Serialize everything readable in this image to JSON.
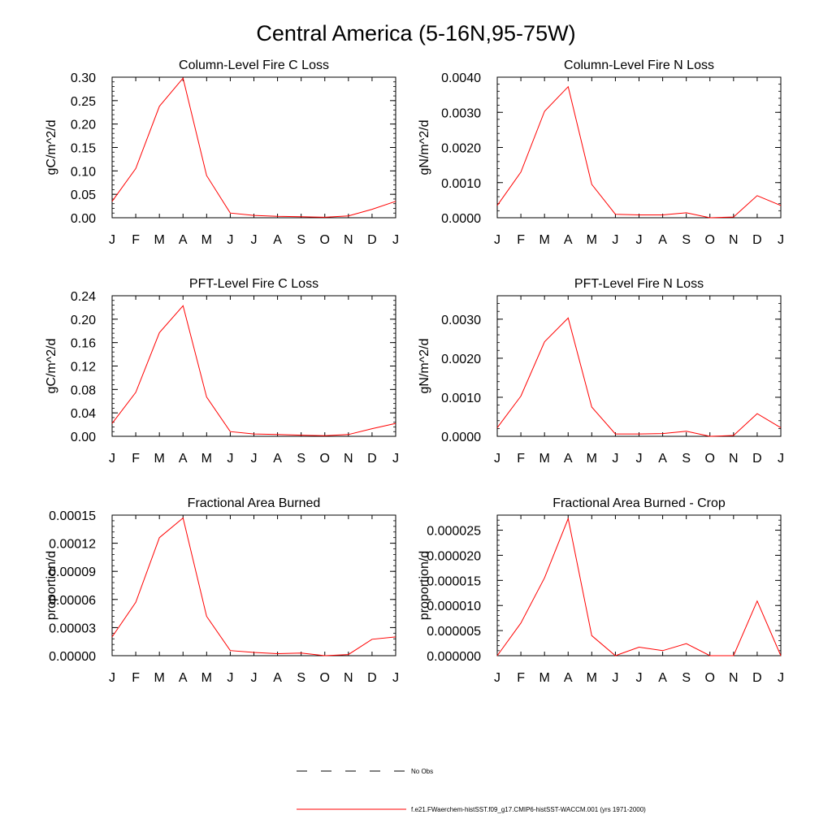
{
  "title": "Central America (5-16N,95-75W)",
  "series_color": "#ff0000",
  "legend": {
    "entries": [
      {
        "label": "No Obs",
        "style": "dashed",
        "color": "#000000"
      },
      {
        "label": "f.e21.FWaerchem-histSST.f09_g17.CMIP6-histSST-WACCM.001 (yrs 1971-2000)",
        "style": "solid",
        "color": "#ff0000"
      }
    ]
  },
  "chart_data": [
    {
      "type": "line",
      "title": "Column-Level Fire C Loss",
      "ylabel": "gC/m^2/d",
      "categories": [
        "J",
        "F",
        "M",
        "A",
        "M",
        "J",
        "J",
        "A",
        "S",
        "O",
        "N",
        "D",
        "J"
      ],
      "ylim": [
        0,
        0.3
      ],
      "yticks": [
        0,
        0.05,
        0.1,
        0.15,
        0.2,
        0.25,
        0.3
      ],
      "ytick_labels": [
        "0.00",
        "0.05",
        "0.10",
        "0.15",
        "0.20",
        "0.25",
        "0.30"
      ],
      "series": [
        {
          "values": [
            0.035,
            0.105,
            0.238,
            0.298,
            0.09,
            0.01,
            0.005,
            0.003,
            0.002,
            0.001,
            0.004,
            0.018,
            0.035
          ]
        }
      ]
    },
    {
      "type": "line",
      "title": "Column-Level Fire N Loss",
      "ylabel": "gN/m^2/d",
      "categories": [
        "J",
        "F",
        "M",
        "A",
        "M",
        "J",
        "J",
        "A",
        "S",
        "O",
        "N",
        "D",
        "J"
      ],
      "ylim": [
        0,
        0.004
      ],
      "yticks": [
        0,
        0.001,
        0.002,
        0.003,
        0.004
      ],
      "ytick_labels": [
        "0.0000",
        "0.0010",
        "0.0020",
        "0.0030",
        "0.0040"
      ],
      "series": [
        {
          "values": [
            0.00035,
            0.0013,
            0.00303,
            0.00373,
            0.00095,
            0.0001,
            8e-05,
            8e-05,
            0.00014,
            0.0,
            2e-05,
            0.00063,
            0.00035
          ]
        }
      ]
    },
    {
      "type": "line",
      "title": "PFT-Level Fire C Loss",
      "ylabel": "gC/m^2/d",
      "categories": [
        "J",
        "F",
        "M",
        "A",
        "M",
        "J",
        "J",
        "A",
        "S",
        "O",
        "N",
        "D",
        "J"
      ],
      "ylim": [
        0,
        0.24
      ],
      "yticks": [
        0,
        0.04,
        0.08,
        0.12,
        0.16,
        0.2,
        0.24
      ],
      "ytick_labels": [
        "0.00",
        "0.04",
        "0.08",
        "0.12",
        "0.16",
        "0.20",
        "0.24"
      ],
      "series": [
        {
          "values": [
            0.022,
            0.075,
            0.177,
            0.223,
            0.067,
            0.008,
            0.004,
            0.003,
            0.002,
            0.001,
            0.003,
            0.013,
            0.022
          ]
        }
      ]
    },
    {
      "type": "line",
      "title": "PFT-Level Fire N Loss",
      "ylabel": "gN/m^2/d",
      "categories": [
        "J",
        "F",
        "M",
        "A",
        "M",
        "J",
        "J",
        "A",
        "S",
        "O",
        "N",
        "D",
        "J"
      ],
      "ylim": [
        0,
        0.0036
      ],
      "yticks": [
        0,
        0.001,
        0.002,
        0.003
      ],
      "ytick_labels": [
        "0.0000",
        "0.0010",
        "0.0020",
        "0.0030"
      ],
      "series": [
        {
          "values": [
            0.00022,
            0.00103,
            0.00242,
            0.00303,
            0.00075,
            6e-05,
            6e-05,
            7e-05,
            0.00013,
            0.0,
            2e-05,
            0.00058,
            0.00022
          ]
        }
      ]
    },
    {
      "type": "line",
      "title": "Fractional Area Burned",
      "ylabel": "proportion/d",
      "categories": [
        "J",
        "F",
        "M",
        "A",
        "M",
        "J",
        "J",
        "A",
        "S",
        "O",
        "N",
        "D",
        "J"
      ],
      "ylim": [
        0,
        0.00015
      ],
      "yticks": [
        0,
        3e-05,
        6e-05,
        9e-05,
        0.00012,
        0.00015
      ],
      "ytick_labels": [
        "0.00000",
        "0.00003",
        "0.00006",
        "0.00009",
        "0.00012",
        "0.00015"
      ],
      "series": [
        {
          "values": [
            2e-05,
            5.7e-05,
            0.000126,
            0.000147,
            4.2e-05,
            5.5e-06,
            3.5e-06,
            2.2e-06,
            2.8e-06,
            0.0,
            1.2e-06,
            1.75e-05,
            2e-05
          ]
        }
      ]
    },
    {
      "type": "line",
      "title": "Fractional Area Burned - Crop",
      "ylabel": "proportion/d",
      "categories": [
        "J",
        "F",
        "M",
        "A",
        "M",
        "J",
        "J",
        "A",
        "S",
        "O",
        "N",
        "D",
        "J"
      ],
      "ylim": [
        0,
        2.8e-05
      ],
      "yticks": [
        0,
        5e-06,
        1e-05,
        1.5e-05,
        2e-05,
        2.5e-05
      ],
      "ytick_labels": [
        "0.000000",
        "0.000005",
        "0.000010",
        "0.000015",
        "0.000020",
        "0.000025"
      ],
      "series": [
        {
          "values": [
            0.0,
            6.5e-06,
            1.55e-05,
            2.73e-05,
            4e-06,
            0.0,
            1.7e-06,
            1e-06,
            2.4e-06,
            0.0,
            0.0,
            1.09e-05,
            0.0
          ]
        }
      ]
    }
  ]
}
